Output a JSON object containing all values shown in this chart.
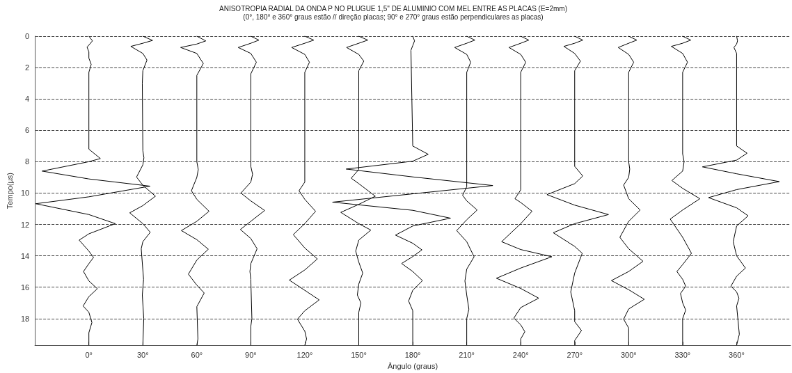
{
  "chart_data": {
    "type": "line",
    "title": "ANISOTROPIA RADIAL DA ONDA P NO PLUGUE 1,5'' DE ALUMINIO COM MEL ENTRE AS PLACAS (E=2mm)",
    "subtitle": "(0°, 180° e 360° graus estão // direção placas; 90° e 270° graus estão perpendiculares as placas)",
    "xlabel": "Ângulo (graus)",
    "ylabel": "Tempo(µs)",
    "xlim": [
      -30,
      390
    ],
    "xticks": [
      {
        "value": 0,
        "label": "0°"
      },
      {
        "value": 30,
        "label": "30°"
      },
      {
        "value": 60,
        "label": "60°"
      },
      {
        "value": 90,
        "label": "90°"
      },
      {
        "value": 120,
        "label": "120°"
      },
      {
        "value": 150,
        "label": "150°"
      },
      {
        "value": 180,
        "label": "180°"
      },
      {
        "value": 210,
        "label": "210°"
      },
      {
        "value": 240,
        "label": "240°"
      },
      {
        "value": 270,
        "label": "270°"
      },
      {
        "value": 300,
        "label": "300°"
      },
      {
        "value": 330,
        "label": "330°"
      },
      {
        "value": 360,
        "label": "360°"
      }
    ],
    "ylim": [
      19.7,
      0
    ],
    "yticks": [
      0,
      2,
      4,
      6,
      8,
      10,
      12,
      14,
      16,
      18
    ],
    "grid": "y",
    "marker": "none",
    "line_style": "solid",
    "series": [
      {
        "color": "#000000",
        "x": [
          0,
          2,
          -1,
          0,
          0,
          1.3,
          0,
          0,
          6.4,
          0,
          -26,
          0,
          34,
          0,
          -29.5,
          0,
          14.7,
          0,
          -5.4,
          0,
          2.6,
          0,
          -3,
          0,
          4.7,
          0,
          -3.2,
          0,
          1.7,
          0,
          0
        ],
        "values": [
          0,
          0.3,
          0.7,
          1.0,
          1.4,
          1.8,
          2.3,
          7.2,
          7.8,
          8.0,
          8.6,
          9.1,
          9.56,
          10.24,
          10.68,
          11.37,
          11.95,
          12.6,
          13.0,
          13.7,
          14.1,
          14.5,
          15.0,
          15.6,
          16.1,
          16.6,
          17.2,
          17.6,
          18.25,
          18.9,
          19.7
        ]
      },
      {
        "color": "#000000",
        "x": [
          30,
          35.4,
          30,
          23.3,
          30,
          32.3,
          30,
          29.7,
          30,
          30.6,
          30,
          26.5,
          30,
          37,
          30,
          22.7,
          30,
          34.1,
          30,
          29.1,
          30.4,
          29.7,
          30.5,
          30
        ],
        "values": [
          0,
          0.27,
          0.45,
          0.65,
          1.1,
          1.52,
          2.2,
          3.0,
          7.3,
          7.75,
          8.2,
          8.98,
          9.5,
          10.2,
          10.8,
          11.26,
          11.95,
          12.5,
          13.1,
          13.55,
          15.5,
          16.5,
          18.0,
          19.7
        ]
      },
      {
        "color": "#000000",
        "x": [
          60,
          65,
          60,
          51,
          60,
          63.6,
          60,
          60,
          60.8,
          60,
          57,
          60,
          66.8,
          60,
          51.4,
          60,
          66.4,
          60,
          55.3,
          60,
          64.1,
          60,
          60.6,
          60
        ],
        "values": [
          0,
          0.3,
          0.5,
          0.72,
          1.1,
          1.74,
          2.5,
          8.0,
          8.5,
          9.0,
          9.85,
          10.4,
          11.16,
          11.8,
          12.39,
          12.97,
          13.58,
          14.27,
          15.17,
          15.87,
          16.37,
          17.24,
          19.3,
          19.7
        ]
      },
      {
        "color": "#000000",
        "x": [
          90,
          94.5,
          90,
          83,
          90,
          93.1,
          90,
          90,
          91,
          90,
          84.5,
          90,
          97.7,
          90,
          84.2,
          90,
          93.5,
          90,
          89.5,
          90,
          90.6,
          90,
          90
        ],
        "values": [
          0,
          0.25,
          0.45,
          0.72,
          1.1,
          1.66,
          2.4,
          8.3,
          8.8,
          9.3,
          10.0,
          10.5,
          11.11,
          11.8,
          12.32,
          12.9,
          13.55,
          14.5,
          15.0,
          15.5,
          18.0,
          18.5,
          19.7
        ]
      },
      {
        "color": "#000000",
        "x": [
          120,
          125,
          120,
          112.7,
          120,
          122.6,
          120,
          120,
          116.8,
          120,
          126,
          120,
          113.6,
          120,
          127,
          120,
          111.4,
          120,
          128,
          120,
          115.9,
          120,
          121,
          120
        ],
        "values": [
          0,
          0.25,
          0.45,
          0.72,
          1.16,
          1.66,
          2.3,
          9.3,
          9.85,
          10.4,
          11.16,
          11.95,
          12.65,
          13.5,
          14.2,
          14.9,
          15.55,
          16.2,
          16.81,
          17.5,
          18.04,
          18.8,
          19.3,
          19.7
        ]
      },
      {
        "color": "#000000",
        "x": [
          150,
          155,
          150,
          143.2,
          150,
          152.8,
          150,
          150,
          145.8,
          150,
          159.2,
          150,
          140,
          150,
          156.7,
          150,
          148.3,
          150,
          152.2,
          150,
          149.2,
          151.2,
          150,
          150
        ],
        "values": [
          0,
          0.25,
          0.45,
          0.72,
          1.16,
          1.59,
          2.2,
          8.5,
          9.05,
          9.4,
          10.2,
          10.72,
          11.23,
          11.95,
          12.36,
          13.0,
          13.7,
          14.4,
          15.1,
          15.8,
          16.5,
          17.0,
          17.6,
          19.7
        ]
      },
      {
        "color": "#000000",
        "x": [
          180,
          181,
          180,
          179,
          180,
          188.6,
          180,
          143,
          180,
          224.5,
          180,
          135.4,
          180,
          201,
          180,
          170.4,
          180,
          185.1,
          180,
          173.8,
          180,
          185.4,
          180,
          177.7,
          180,
          180
        ],
        "values": [
          0,
          0.3,
          0.6,
          0.9,
          7.0,
          7.53,
          7.97,
          8.47,
          8.97,
          9.52,
          10.05,
          10.58,
          11.1,
          11.6,
          12.1,
          12.68,
          13.2,
          13.62,
          14.05,
          14.49,
          15.0,
          15.58,
          16.2,
          16.88,
          17.5,
          19.7
        ]
      },
      {
        "color": "#000000",
        "x": [
          210,
          214.5,
          210,
          203.3,
          210,
          212.2,
          210,
          210,
          207.7,
          210,
          215.8,
          210,
          204.4,
          210,
          214.1,
          210,
          209,
          210,
          211.2,
          210,
          210
        ],
        "values": [
          0,
          0.25,
          0.45,
          0.72,
          1.16,
          1.66,
          2.3,
          9.6,
          10.14,
          10.5,
          11.08,
          11.7,
          12.39,
          13.1,
          14.06,
          14.85,
          15.6,
          16.5,
          17.4,
          18.0,
          19.7
        ]
      },
      {
        "color": "#000000",
        "x": [
          240,
          244.5,
          240,
          233.5,
          240,
          242.8,
          240,
          240,
          236.8,
          240,
          246.3,
          240,
          229.4,
          240,
          257.3,
          240,
          226.5,
          240,
          250,
          240,
          236.2,
          240,
          242.3,
          240,
          240
        ],
        "values": [
          0,
          0.25,
          0.45,
          0.72,
          1.16,
          1.66,
          2.3,
          9.8,
          10.36,
          10.6,
          11.16,
          11.95,
          13.1,
          13.6,
          14.06,
          14.78,
          15.43,
          16.08,
          16.7,
          17.3,
          17.97,
          18.4,
          18.84,
          19.3,
          19.7
        ]
      },
      {
        "color": "#000000",
        "x": [
          270,
          274.5,
          270,
          264,
          270,
          273.2,
          270,
          270,
          274.5,
          270,
          254.6,
          270,
          288.8,
          270,
          258.1,
          270,
          274.2,
          270,
          267.8,
          270,
          270,
          273.8,
          270,
          270
        ],
        "values": [
          0,
          0.25,
          0.45,
          0.65,
          1.1,
          1.59,
          2.2,
          8.3,
          8.91,
          9.4,
          10.1,
          10.77,
          11.37,
          11.95,
          12.53,
          13.4,
          13.84,
          15.1,
          16.3,
          17.5,
          18.2,
          18.76,
          19.4,
          19.7
        ]
      },
      {
        "color": "#000000",
        "x": [
          300,
          304.5,
          300,
          294.2,
          300,
          302.8,
          300,
          300,
          300.6,
          300,
          297.2,
          300,
          306.4,
          300,
          295.1,
          300,
          308,
          300,
          290.4,
          300,
          308.7,
          300,
          297.2,
          300,
          300
        ],
        "values": [
          0,
          0.25,
          0.45,
          0.72,
          1.16,
          1.66,
          2.3,
          8.0,
          8.47,
          9.0,
          9.49,
          10.36,
          11.08,
          11.8,
          12.82,
          13.55,
          14.35,
          15.0,
          15.58,
          16.16,
          16.77,
          17.39,
          18.04,
          18.6,
          19.7
        ]
      },
      {
        "color": "#000000",
        "x": [
          330,
          334.5,
          330,
          323.7,
          330,
          332.7,
          330,
          330,
          330.8,
          330,
          324,
          330,
          339.6,
          330,
          323.1,
          330,
          334.9,
          330,
          326.8,
          330,
          331.7,
          328.8,
          330,
          331.7,
          330,
          330
        ],
        "values": [
          0,
          0.25,
          0.45,
          0.65,
          1.1,
          1.66,
          2.3,
          7.5,
          8.0,
          8.6,
          9.2,
          9.7,
          10.36,
          11.08,
          11.66,
          12.82,
          13.84,
          14.56,
          15.0,
          15.5,
          15.94,
          16.4,
          17.0,
          17.46,
          18.0,
          19.7
        ]
      },
      {
        "color": "#000000",
        "x": [
          360,
          360.5,
          360,
          358.5,
          360,
          360,
          365.8,
          360,
          341,
          360,
          383.7,
          360,
          344.4,
          360,
          366.4,
          360,
          358.1,
          360,
          364.9,
          360,
          356.8,
          360,
          361.3,
          360,
          361.5,
          360
        ],
        "values": [
          0,
          0.3,
          0.5,
          0.72,
          1.1,
          7.0,
          7.46,
          7.9,
          8.33,
          8.77,
          9.27,
          9.78,
          10.29,
          10.94,
          11.45,
          12.1,
          13.1,
          14.0,
          14.78,
          15.3,
          15.94,
          16.3,
          16.7,
          17.2,
          19.0,
          19.7
        ]
      }
    ]
  }
}
